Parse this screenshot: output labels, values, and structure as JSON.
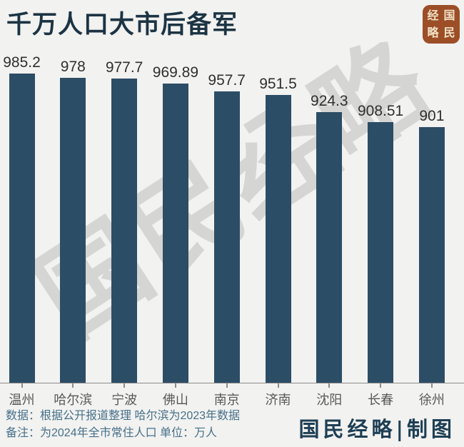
{
  "title": "千万人口大市后备军",
  "watermark": "国民经略",
  "logo": {
    "top_left": "经",
    "bottom_left": "略",
    "top_right": "国",
    "bottom_right": "民"
  },
  "colors": {
    "bar": "#2C4D66",
    "title": "#1C3444",
    "seal_background": "#9C4E27",
    "seal_text": "#F2E3C8",
    "footer_text": "#46708A",
    "credit_text": "#1E3F55",
    "background": "#F2F2F0"
  },
  "chart_data": {
    "type": "bar",
    "title": "千万人口大市后备军",
    "categories": [
      "温州",
      "哈尔滨",
      "宁波",
      "佛山",
      "南京",
      "济南",
      "沈阳",
      "长春",
      "徐州"
    ],
    "values": [
      985.2,
      978,
      977.7,
      969.89,
      957.7,
      951.5,
      924.3,
      908.51,
      901
    ],
    "value_labels": [
      "985.2",
      "978",
      "977.7",
      "969.89",
      "957.7",
      "951.5",
      "924.3",
      "908.51",
      "901"
    ],
    "unit": "万人",
    "xlabel": "",
    "ylabel": "",
    "ylim": [
      500,
      1000
    ],
    "grid": false,
    "legend": false
  },
  "footer": {
    "line1": "数据：根据公开报道整理 哈尔滨为2023年数据",
    "line2": "备注：为2024年全市常住人口  单位：万人",
    "credit": "国民经略|制图"
  }
}
